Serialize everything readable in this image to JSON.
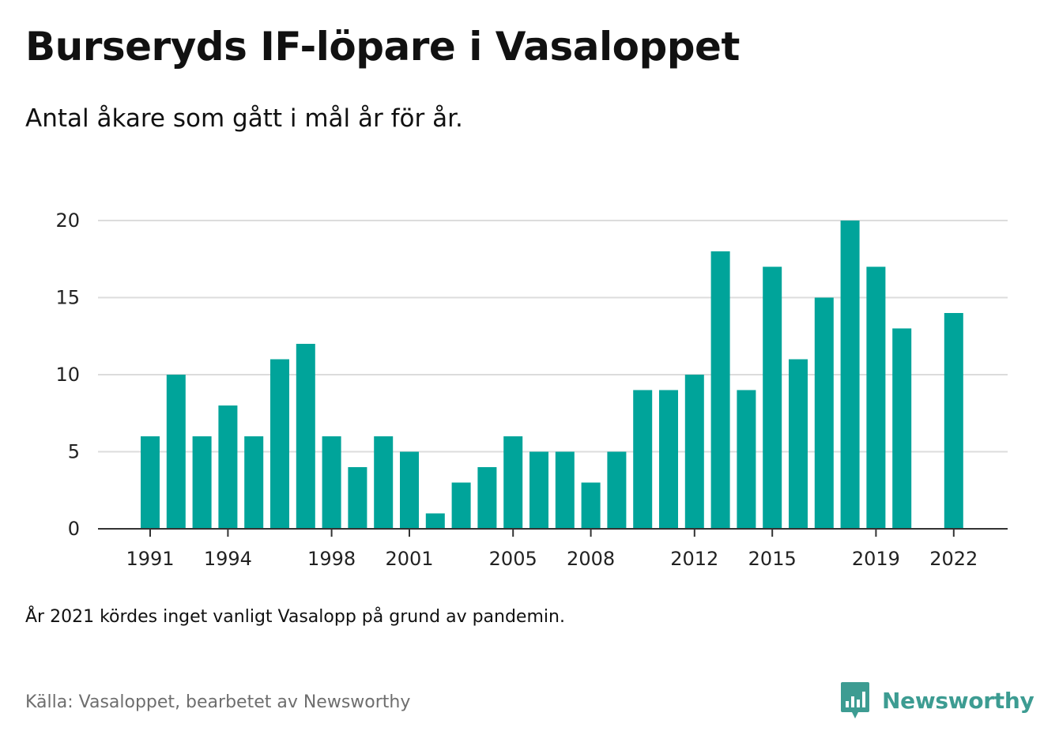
{
  "title": "Burseryds IF-löpare i Vasaloppet",
  "subtitle": "Antal åkare som gått i mål år för år.",
  "note": "År 2021 kördes inget vanligt Vasalopp på grund av pandemin.",
  "source": "Källa: Vasaloppet, bearbetet av Newsworthy",
  "brand": {
    "name": "Newsworthy",
    "icon": "bar-chart-speech-bubble-icon",
    "color": "#3d9c92"
  },
  "chart_data": {
    "type": "bar",
    "x": [
      1991,
      1992,
      1993,
      1994,
      1995,
      1996,
      1997,
      1998,
      1999,
      2000,
      2001,
      2002,
      2003,
      2004,
      2005,
      2006,
      2007,
      2008,
      2009,
      2010,
      2011,
      2012,
      2013,
      2014,
      2015,
      2016,
      2017,
      2018,
      2019,
      2020,
      2021,
      2022
    ],
    "values": [
      6,
      10,
      6,
      8,
      6,
      11,
      12,
      6,
      4,
      6,
      5,
      1,
      3,
      4,
      6,
      5,
      5,
      3,
      5,
      9,
      9,
      10,
      18,
      9,
      17,
      11,
      15,
      20,
      17,
      13,
      null,
      14
    ],
    "xticks": [
      "1991",
      "1994",
      "1998",
      "2001",
      "2005",
      "2008",
      "2012",
      "2015",
      "2019",
      "2022"
    ],
    "yticks": [
      "0",
      "5",
      "10",
      "15",
      "20"
    ],
    "ylim": [
      0,
      20
    ],
    "xlabel": "",
    "ylabel": "",
    "grid": true,
    "bar_color": "#00a49a"
  }
}
